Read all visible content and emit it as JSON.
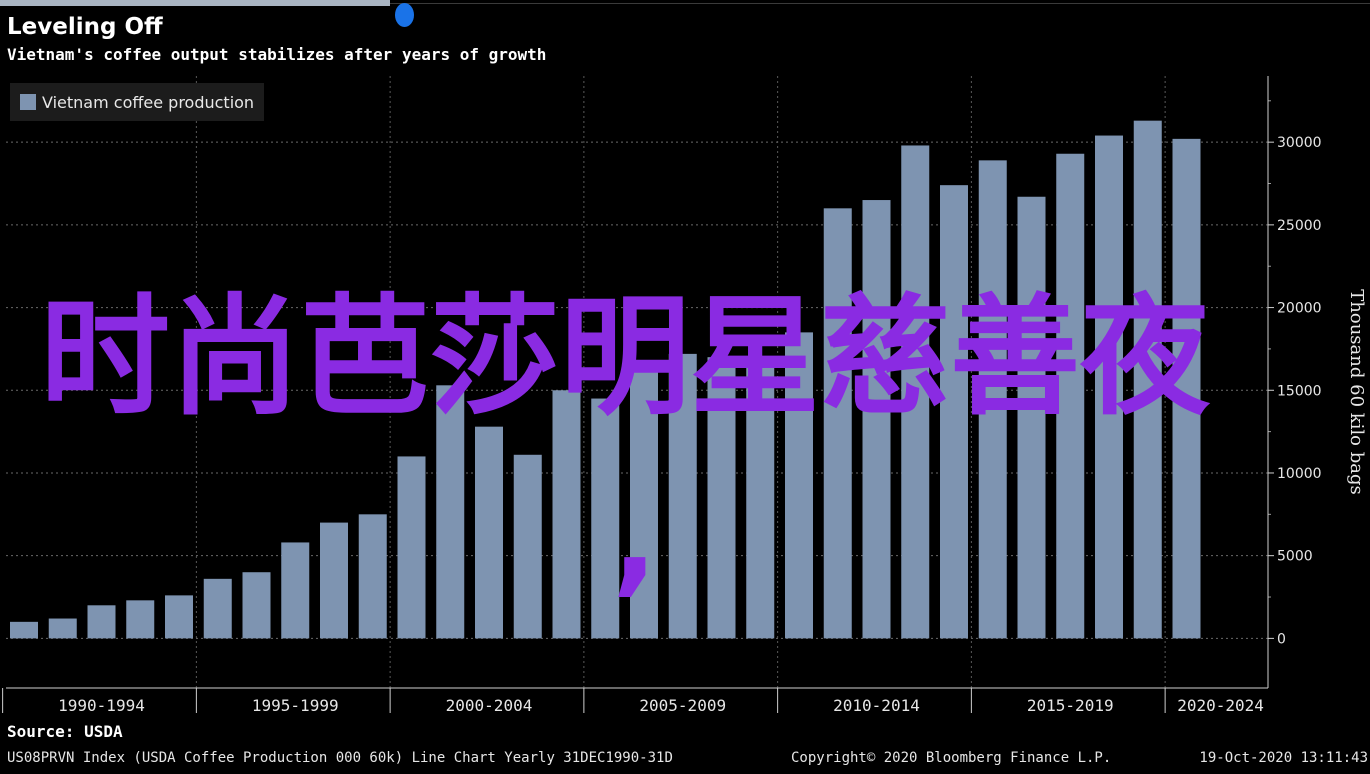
{
  "header": {
    "title": "Leveling Off",
    "subtitle": "Vietnam's coffee output stabilizes after years of growth"
  },
  "overlay": {
    "text": "时尚芭莎明星慈善夜",
    "comma": ","
  },
  "footer": {
    "source": "Source: USDA",
    "index_info": "US08PRVN Index (USDA Coffee Production 000 60k) Line Chart  Yearly 31DEC1990-31D",
    "copyright": "Copyright© 2020 Bloomberg Finance L.P.",
    "timestamp": "19-Oct-2020 13:11:43"
  },
  "colors": {
    "bar": "#7e94b1",
    "overlay": "#8a2be2",
    "background": "#000000"
  },
  "chart_data": {
    "type": "bar",
    "title": "Leveling Off",
    "subtitle": "Vietnam's coffee output stabilizes after years of growth",
    "legend": [
      "Vietnam coffee production"
    ],
    "legend_position": "top-left",
    "ylabel": "Thousand 60 kilo bags",
    "y_axis_side": "right",
    "ylim": [
      -3000,
      34000
    ],
    "yticks": [
      0,
      5000,
      10000,
      15000,
      20000,
      25000,
      30000
    ],
    "grid": true,
    "x_group_labels": [
      "1990-1994",
      "1995-1999",
      "2000-2004",
      "2005-2009",
      "2010-2014",
      "2015-2019",
      "2020-2024"
    ],
    "series": [
      {
        "name": "Vietnam coffee production",
        "x": [
          1990,
          1991,
          1992,
          1993,
          1994,
          1995,
          1996,
          1997,
          1998,
          1999,
          2000,
          2001,
          2002,
          2003,
          2004,
          2005,
          2006,
          2007,
          2008,
          2009,
          2010,
          2011,
          2012,
          2013,
          2014,
          2015,
          2016,
          2017,
          2018,
          2019,
          2020
        ],
        "values": [
          1000,
          1200,
          2000,
          2300,
          2600,
          3600,
          4000,
          5800,
          7000,
          7500,
          11000,
          15300,
          12800,
          11100,
          15000,
          14500,
          16400,
          17200,
          17000,
          17000,
          18500,
          26000,
          26500,
          29800,
          27400,
          28900,
          26700,
          29300,
          30400,
          31300,
          30200
        ]
      }
    ]
  }
}
